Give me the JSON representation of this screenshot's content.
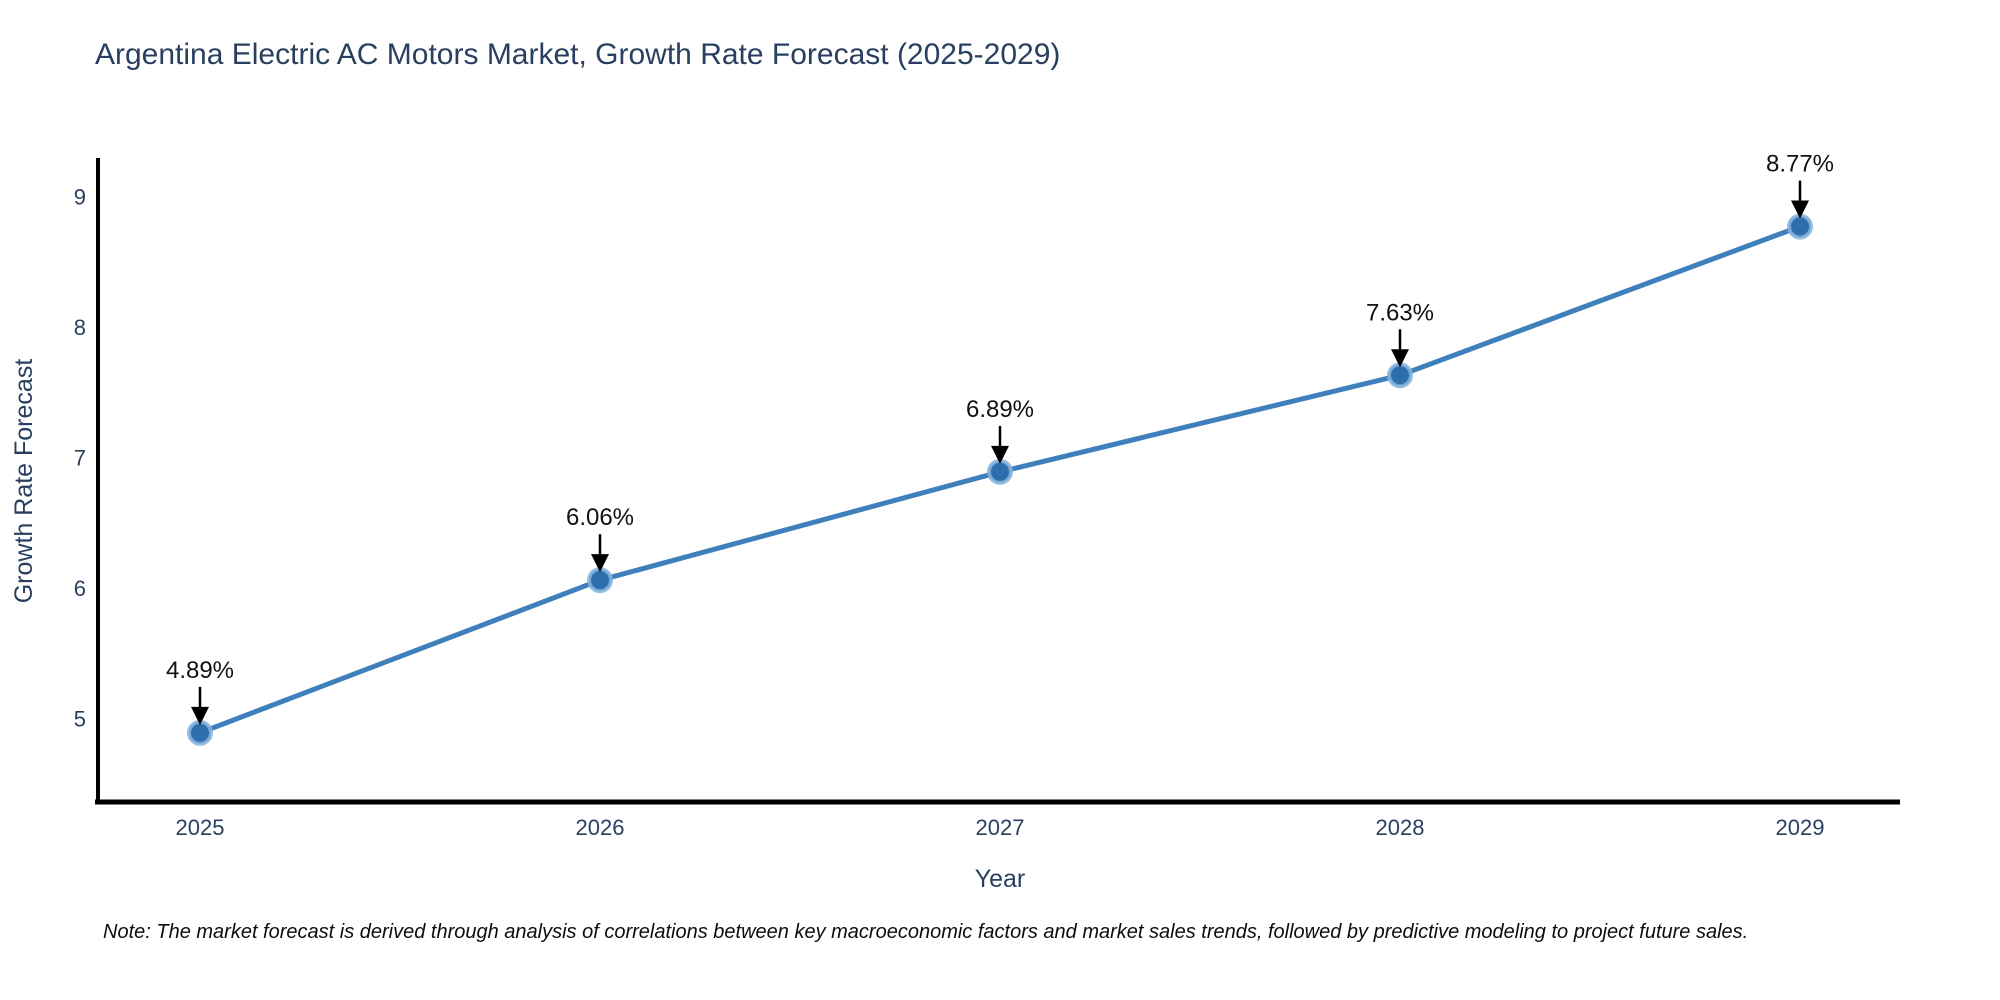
{
  "chart_data": {
    "type": "line",
    "title": "Argentina Electric AC Motors Market, Growth Rate Forecast (2025-2029)",
    "xlabel": "Year",
    "ylabel": "Growth Rate Forecast",
    "x": [
      2025,
      2026,
      2027,
      2028,
      2029
    ],
    "values": [
      4.89,
      6.06,
      6.89,
      7.63,
      8.77
    ],
    "point_labels": [
      "4.89%",
      "6.06%",
      "6.89%",
      "7.63%",
      "8.77%"
    ],
    "yticks": [
      5,
      6,
      7,
      8,
      9
    ],
    "xlim": [
      2024.745,
      2029.25
    ],
    "ylim": [
      4.36,
      9.28
    ],
    "grid": "off",
    "legend": "none",
    "annotation_style": "black down-arrow from label to marker",
    "colors": {
      "line": "#3f7fbc",
      "marker_fill": "#2f6ead",
      "marker_halo": "#85b4dc",
      "axis": "#000000",
      "axis_text": "#2a3f5f",
      "annotation_text": "#111111",
      "background": "#ffffff"
    }
  },
  "note": "Note: The market forecast is derived through analysis of correlations between key macroeconomic factors and market sales trends, followed by predictive modeling to project future sales."
}
